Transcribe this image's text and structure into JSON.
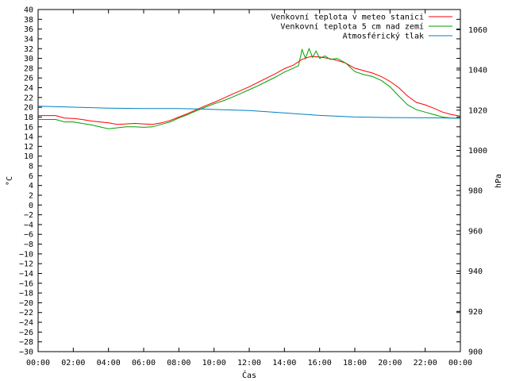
{
  "chart_data": {
    "type": "line",
    "title": "",
    "xlabel": "Čas",
    "ylabel_left": "°C",
    "ylabel_right": "hPa",
    "x_ticks": [
      "00:00",
      "02:00",
      "04:00",
      "06:00",
      "08:00",
      "10:00",
      "12:00",
      "14:00",
      "16:00",
      "18:00",
      "20:00",
      "22:00",
      "00:00"
    ],
    "xlim_hours": [
      0,
      24
    ],
    "ylim_left": [
      -30,
      40
    ],
    "y_step_left": 2,
    "ylim_right": [
      900,
      1070
    ],
    "y_ticks_right": [
      900,
      920,
      940,
      960,
      980,
      1000,
      1020,
      1040,
      1060
    ],
    "grid": false,
    "legend_position": "top-right",
    "series": [
      {
        "name": "Venkovní teplota v meteo stanici",
        "color": "#ff0000",
        "axis": "left",
        "x": [
          0,
          0.5,
          1,
          1.5,
          2,
          2.5,
          3,
          3.5,
          4,
          4.5,
          5,
          5.5,
          6,
          6.5,
          7,
          7.5,
          8,
          8.5,
          9,
          9.5,
          10,
          10.5,
          11,
          11.5,
          12,
          12.5,
          13,
          13.5,
          14,
          14.5,
          15,
          15.5,
          16,
          16.5,
          17,
          17.5,
          18,
          18.5,
          19,
          19.5,
          20,
          20.5,
          21,
          21.5,
          22,
          22.5,
          23,
          23.5,
          24
        ],
        "y": [
          18.3,
          18.3,
          18.3,
          17.8,
          17.7,
          17.5,
          17.2,
          17.0,
          16.8,
          16.5,
          16.6,
          16.7,
          16.6,
          16.5,
          16.8,
          17.3,
          18.0,
          18.7,
          19.5,
          20.3,
          21.0,
          21.8,
          22.6,
          23.4,
          24.2,
          25.1,
          26.0,
          26.9,
          27.9,
          28.6,
          29.8,
          30.4,
          30.3,
          30.0,
          29.6,
          29.0,
          28.0,
          27.5,
          27.0,
          26.3,
          25.3,
          24.0,
          22.3,
          21.0,
          20.5,
          19.8,
          19.0,
          18.5,
          18.2
        ]
      },
      {
        "name": "Venkovní teplota 5 cm nad zemí",
        "color": "#00a000",
        "axis": "left",
        "x": [
          0,
          0.5,
          1,
          1.5,
          2,
          2.5,
          3,
          3.5,
          4,
          4.5,
          5,
          5.5,
          6,
          6.5,
          7,
          7.5,
          8,
          8.5,
          9,
          9.5,
          10,
          10.5,
          11,
          11.5,
          12,
          12.5,
          13,
          13.5,
          14,
          14.5,
          14.8,
          15,
          15.2,
          15.4,
          15.6,
          15.8,
          16,
          16.3,
          16.6,
          17,
          17.5,
          18,
          18.5,
          19,
          19.5,
          20,
          20.5,
          21,
          21.5,
          22,
          22.5,
          23,
          23.5,
          24
        ],
        "y": [
          17.5,
          17.5,
          17.5,
          17.0,
          17.0,
          16.7,
          16.4,
          16.0,
          15.6,
          15.8,
          16.0,
          16.0,
          15.9,
          16.0,
          16.5,
          17.0,
          17.8,
          18.5,
          19.3,
          20.0,
          20.7,
          21.3,
          22.0,
          22.8,
          23.6,
          24.4,
          25.3,
          26.2,
          27.2,
          28.0,
          28.5,
          31.8,
          30.0,
          32.0,
          30.2,
          31.5,
          30.0,
          30.5,
          29.8,
          30.0,
          29.0,
          27.3,
          26.7,
          26.3,
          25.5,
          24.2,
          22.3,
          20.5,
          19.5,
          19.0,
          18.5,
          18.0,
          17.8,
          17.7
        ]
      },
      {
        "name": "Atmosférický tlak",
        "color": "#0080c0",
        "axis": "right",
        "x": [
          0,
          2,
          4,
          6,
          8,
          9.5,
          10.5,
          12,
          14,
          16,
          18,
          20,
          22,
          24
        ],
        "y": [
          1022,
          1021.5,
          1021,
          1020.8,
          1020.8,
          1020.5,
          1020.2,
          1019.8,
          1018.6,
          1017.4,
          1016.6,
          1016.3,
          1016.2,
          1016.0
        ]
      }
    ]
  }
}
